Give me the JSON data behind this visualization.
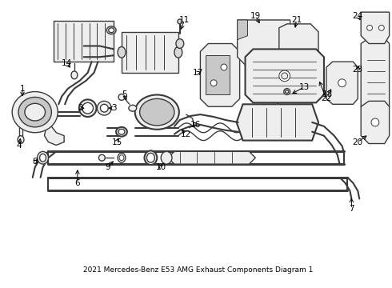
{
  "title": "2021 Mercedes-Benz E53 AMG Exhaust Components Diagram 1",
  "bg": "#ffffff",
  "lc": "#3a3a3a",
  "figsize": [
    4.9,
    3.6
  ],
  "dpi": 100,
  "label_fs": 7.5
}
